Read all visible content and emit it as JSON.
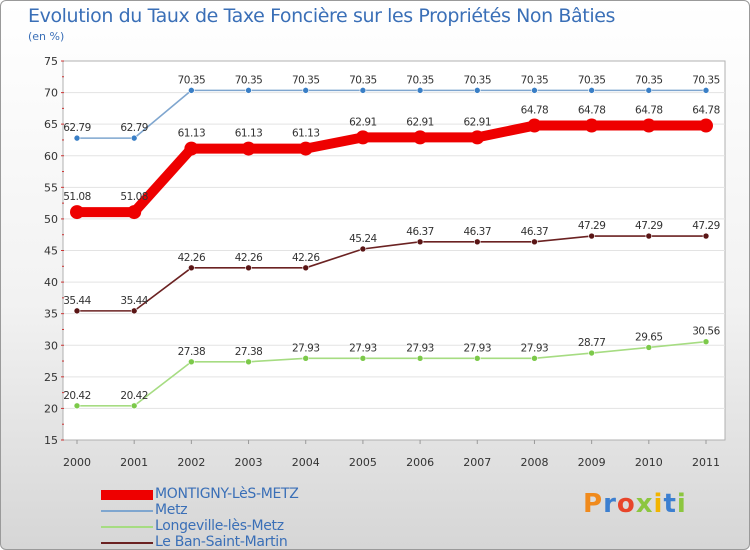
{
  "chart_data": {
    "type": "line",
    "title": "Evolution du Taux de Taxe Foncière sur les Propriétés Non Bâties",
    "subtitle": "(en %)",
    "x": [
      "2000",
      "2001",
      "2002",
      "2003",
      "2004",
      "2005",
      "2006",
      "2007",
      "2008",
      "2009",
      "2010",
      "2011"
    ],
    "ylim": [
      15,
      75
    ],
    "yticks": [
      15,
      20,
      25,
      30,
      35,
      40,
      45,
      50,
      55,
      60,
      65,
      70,
      75
    ],
    "grid": "horizontal",
    "series": [
      {
        "name": "MONTIGNY-LèS-METZ",
        "color": "#ee0000",
        "values": [
          51.08,
          51.08,
          61.13,
          61.13,
          61.13,
          62.91,
          62.91,
          62.91,
          64.78,
          64.78,
          64.78,
          64.78
        ],
        "labels": [
          "51.08",
          "51.08",
          "61.13",
          "61.13",
          "61.13",
          "62.91",
          "62.91",
          "62.91",
          "64.78",
          "64.78",
          "64.78",
          "64.78"
        ],
        "emphasis": true
      },
      {
        "name": "Metz",
        "color": "#7fa6cf",
        "marker_color": "#3a7fc6",
        "values": [
          62.79,
          62.79,
          70.35,
          70.35,
          70.35,
          70.35,
          70.35,
          70.35,
          70.35,
          70.35,
          70.35,
          70.35
        ],
        "labels": [
          "62.79",
          "62.79",
          "70.35",
          "70.35",
          "70.35",
          "70.35",
          "70.35",
          "70.35",
          "70.35",
          "70.35",
          "70.35",
          "70.35"
        ]
      },
      {
        "name": "Longeville-lès-Metz",
        "color": "#a6dc82",
        "marker_color": "#7cc94a",
        "values": [
          20.42,
          20.42,
          27.38,
          27.38,
          27.93,
          27.93,
          27.93,
          27.93,
          27.93,
          28.77,
          29.65,
          30.56
        ],
        "labels": [
          "20.42",
          "20.42",
          "27.38",
          "27.38",
          "27.93",
          "27.93",
          "27.93",
          "27.93",
          "27.93",
          "28.77",
          "29.65",
          "30.56"
        ]
      },
      {
        "name": "Le Ban-Saint-Martin",
        "color": "#6b2222",
        "marker_color": "#5a1515",
        "values": [
          35.44,
          35.44,
          42.26,
          42.26,
          42.26,
          45.24,
          46.37,
          46.37,
          46.37,
          47.29,
          47.29,
          47.29
        ],
        "labels": [
          "35.44",
          "35.44",
          "42.26",
          "42.26",
          "42.26",
          "45.24",
          "46.37",
          "46.37",
          "46.37",
          "47.29",
          "47.29",
          "47.29"
        ]
      }
    ]
  },
  "logo": {
    "letters": [
      "P",
      "r",
      "o",
      "x",
      "i",
      "t",
      "i"
    ],
    "colors": [
      "#f08a1c",
      "#3c7fd0",
      "#e8452a",
      "#8cc63f",
      "#f2b400",
      "#3c7fd0",
      "#8cc63f"
    ]
  }
}
